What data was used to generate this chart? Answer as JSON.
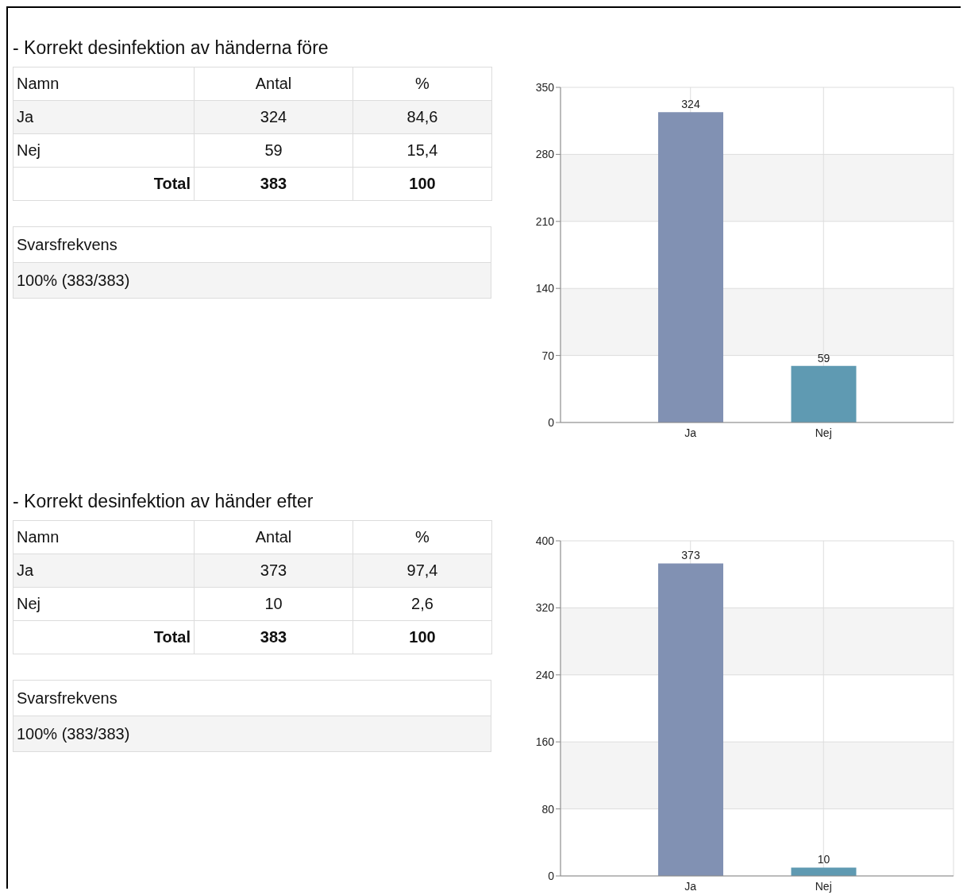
{
  "chart_data": [
    {
      "type": "other",
      "title": "- Korrekt desinfektion av händerna före",
      "annotations": [
        "Namn",
        "Antal",
        "%",
        "Ja",
        "324",
        "84,6",
        "Nej",
        "59",
        "15,4",
        "Total",
        "383",
        "100",
        "Svarsfrekvens",
        "100% (383/383)"
      ]
    },
    {
      "type": "bar",
      "categories": [
        "Ja",
        "Nej"
      ],
      "values": [
        324,
        59
      ],
      "colors": [
        "#8191b3",
        "#5f9ab2"
      ],
      "ylim": [
        0,
        350
      ],
      "yticks": [
        0,
        70,
        140,
        210,
        280,
        350
      ],
      "grid": true,
      "data_labels": true
    },
    {
      "type": "other",
      "title": "- Korrekt desinfektion av händer efter",
      "annotations": [
        "Namn",
        "Antal",
        "%",
        "Ja",
        "373",
        "97,4",
        "Nej",
        "10",
        "2,6",
        "Total",
        "383",
        "100",
        "Svarsfrekvens",
        "100% (383/383)"
      ]
    },
    {
      "type": "bar",
      "categories": [
        "Ja",
        "Nej"
      ],
      "values": [
        373,
        10
      ],
      "colors": [
        "#8191b3",
        "#5f9ab2"
      ],
      "ylim": [
        0,
        400
      ],
      "yticks": [
        0,
        80,
        160,
        240,
        320,
        400
      ],
      "grid": true,
      "data_labels": true
    }
  ]
}
